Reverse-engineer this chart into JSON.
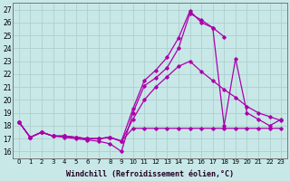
{
  "bg_color": "#c8e8e8",
  "line_color": "#aa00aa",
  "grid_color": "#b0d0d0",
  "xlabel": "Windchill (Refroidissement éolien,°C)",
  "xlabel_fontsize": 6.0,
  "ytick_fontsize": 5.5,
  "xtick_fontsize": 5.0,
  "ylim": [
    15.5,
    27.5
  ],
  "xlim": [
    -0.5,
    23.5
  ],
  "yticks": [
    16,
    17,
    18,
    19,
    20,
    21,
    22,
    23,
    24,
    25,
    26,
    27
  ],
  "xticks": [
    0,
    1,
    2,
    3,
    4,
    5,
    6,
    7,
    8,
    9,
    10,
    11,
    12,
    13,
    14,
    15,
    16,
    17,
    18,
    19,
    20,
    21,
    22,
    23
  ],
  "line1_x": [
    0,
    1,
    2,
    3,
    4,
    5,
    6,
    7,
    8,
    9,
    10,
    11,
    12,
    13,
    14,
    15,
    16,
    17,
    18,
    19,
    20,
    21,
    22,
    23
  ],
  "line1_y": [
    18.3,
    17.1,
    17.5,
    17.2,
    17.1,
    17.0,
    16.9,
    16.8,
    16.6,
    16.0,
    19.0,
    21.1,
    21.7,
    22.5,
    24.0,
    26.7,
    26.2,
    25.6,
    18.0,
    23.2,
    19.0,
    18.5,
    18.0,
    18.5
  ],
  "line2_x": [
    0,
    1,
    2,
    3,
    4,
    5,
    6,
    7,
    8,
    9,
    10,
    11,
    12,
    13,
    14,
    15,
    16,
    17,
    18
  ],
  "line2_y": [
    18.3,
    17.1,
    17.5,
    17.2,
    17.2,
    17.1,
    17.0,
    17.0,
    17.1,
    16.8,
    19.3,
    21.5,
    22.3,
    23.3,
    24.8,
    26.9,
    26.0,
    25.6,
    24.9
  ],
  "line3_x": [
    0,
    1,
    2,
    3,
    4,
    5,
    6,
    7,
    8,
    9,
    10,
    11,
    12,
    13,
    14,
    15,
    16,
    17,
    18,
    19,
    20,
    21,
    22,
    23
  ],
  "line3_y": [
    18.3,
    17.1,
    17.5,
    17.2,
    17.2,
    17.1,
    17.0,
    17.0,
    17.1,
    16.8,
    17.8,
    17.8,
    17.8,
    17.8,
    17.8,
    17.8,
    17.8,
    17.8,
    17.8,
    17.8,
    17.8,
    17.8,
    17.8,
    17.8
  ],
  "line4_x": [
    0,
    1,
    2,
    3,
    4,
    5,
    6,
    7,
    8,
    9,
    10,
    11,
    12,
    13,
    14,
    15,
    16,
    17,
    18,
    19,
    20,
    21,
    22,
    23
  ],
  "line4_y": [
    18.3,
    17.1,
    17.5,
    17.2,
    17.2,
    17.1,
    17.0,
    17.0,
    17.1,
    16.8,
    18.5,
    20.0,
    21.0,
    21.8,
    22.6,
    23.0,
    22.2,
    21.5,
    20.8,
    20.2,
    19.5,
    19.0,
    18.7,
    18.4
  ]
}
